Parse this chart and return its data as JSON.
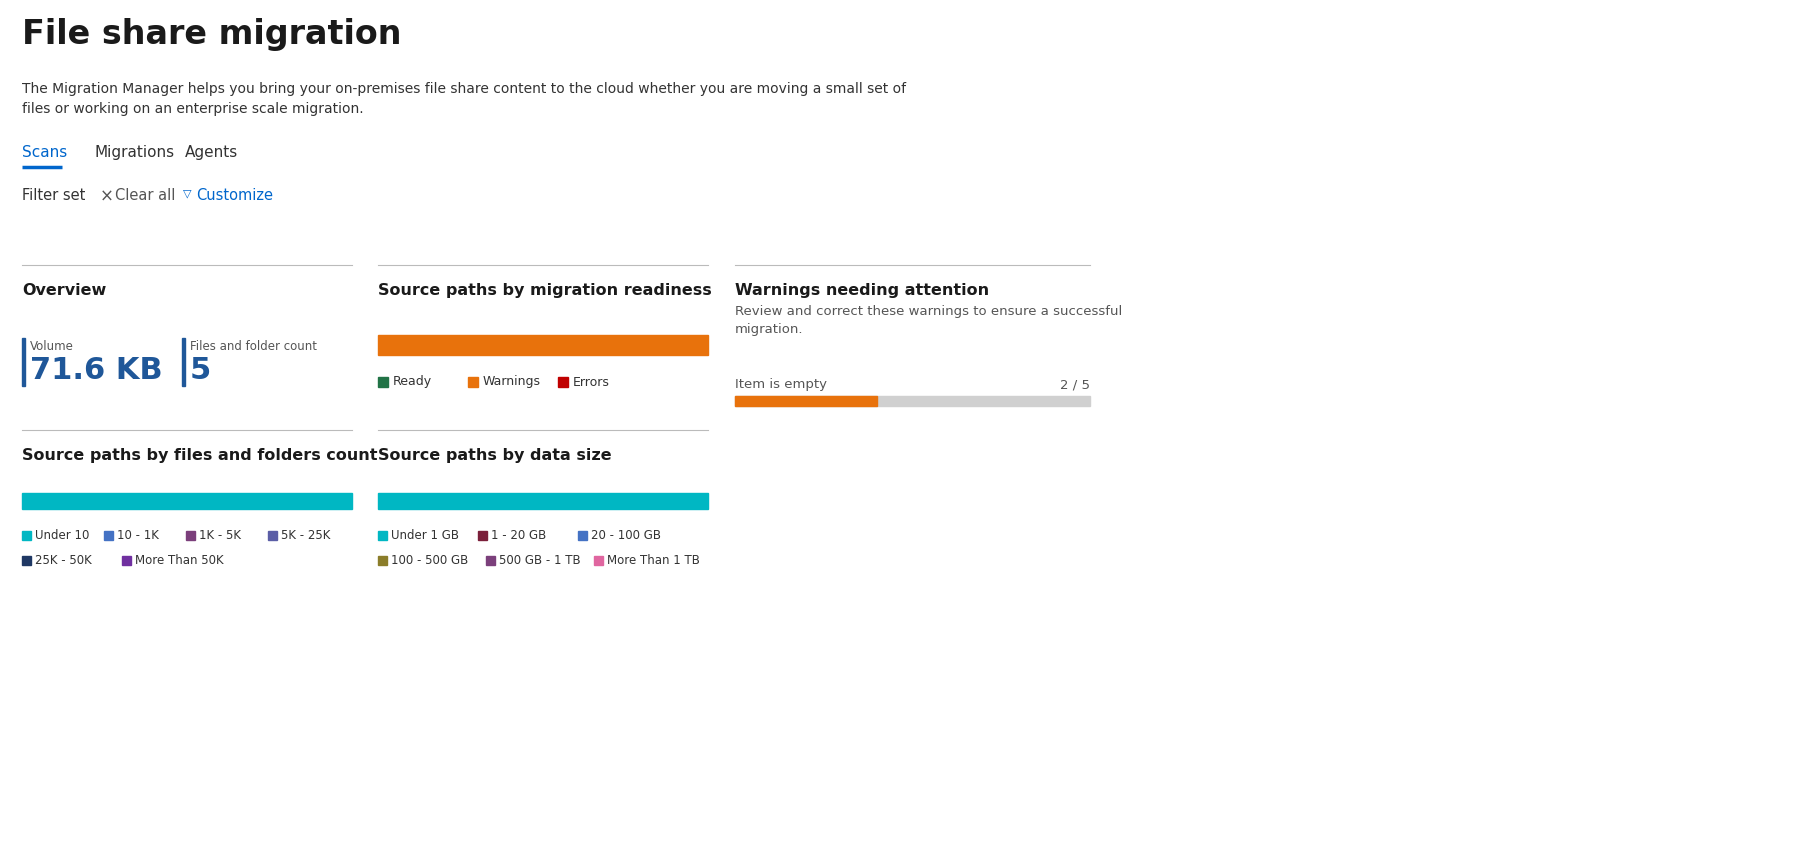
{
  "title": "File share migration",
  "description": "The Migration Manager helps you bring your on-premises file share content to the cloud whether you are moving a small set of\nfiles or working on an enterprise scale migration.",
  "tabs": [
    "Scans",
    "Migrations",
    "Agents"
  ],
  "active_tab": "Scans",
  "filter_label": "Filter set",
  "overview_title": "Overview",
  "volume_label": "Volume",
  "volume_value": "71.6 KB",
  "files_label": "Files and folder count",
  "files_value": "5",
  "migration_readiness_title": "Source paths by migration readiness",
  "migration_legend": [
    "Ready",
    "Warnings",
    "Errors"
  ],
  "migration_colors": [
    "#217346",
    "#E8720C",
    "#C00000"
  ],
  "warnings_title": "Warnings needing attention",
  "warnings_description": "Review and correct these warnings to ensure a successful\nmigration.",
  "warnings_item": "Item is empty",
  "warnings_count": "2 / 5",
  "warnings_progress": 0.4,
  "warnings_bar_color": "#E8720C",
  "warnings_bg_color": "#D0D0D0",
  "files_folders_title": "Source paths by files and folders count",
  "files_folders_bar_color": "#00B7C3",
  "files_folders_legend": [
    "Under 10",
    "10 - 1K",
    "1K - 5K",
    "5K - 25K",
    "25K - 50K",
    "More Than 50K"
  ],
  "files_folders_colors": [
    "#00B7C3",
    "#4472C4",
    "#7B3F7B",
    "#5B5EA6",
    "#1F3864",
    "#7030A0"
  ],
  "data_size_title": "Source paths by data size",
  "data_size_bar_color": "#00B7C3",
  "data_size_legend": [
    "Under 1 GB",
    "1 - 20 GB",
    "20 - 100 GB",
    "100 - 500 GB",
    "500 GB - 1 TB",
    "More Than 1 TB"
  ],
  "data_size_colors": [
    "#00B7C3",
    "#7B1F3A",
    "#4472C4",
    "#8B7D2A",
    "#7B3F7B",
    "#E066A0"
  ],
  "bg_color": "#FFFFFF",
  "title_color": "#1A1A1A",
  "accent_blue": "#0066CC",
  "divider_color": "#BBBBBB"
}
